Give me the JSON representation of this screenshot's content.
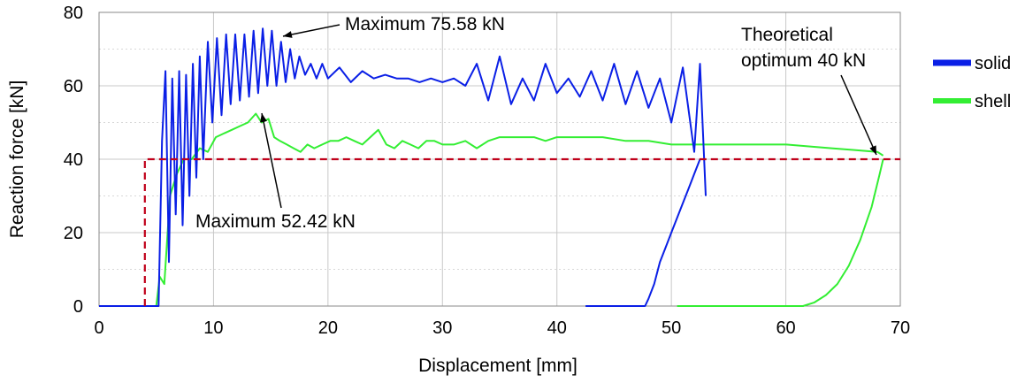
{
  "chart_data": {
    "type": "line",
    "xlabel": "Displacement [mm]",
    "ylabel": "Reaction force [kN]",
    "xlim": [
      0,
      70
    ],
    "ylim": [
      0,
      80
    ],
    "x_ticks": [
      0,
      10,
      20,
      30,
      40,
      50,
      60,
      70
    ],
    "y_ticks": [
      0,
      20,
      40,
      60,
      80
    ],
    "grid": true,
    "legend_position": "right",
    "series": [
      {
        "name": "solid",
        "color": "#0a1fe6",
        "segments": [
          {
            "x": [
              0,
              5.2,
              5.5,
              5.8,
              6.1,
              6.4,
              6.7,
              7.0,
              7.3,
              7.6,
              7.9,
              8.2,
              8.5,
              8.8,
              9.1,
              9.5,
              9.9,
              10.3,
              10.7,
              11.1,
              11.5,
              11.9,
              12.3,
              12.7,
              13.1,
              13.5,
              13.9,
              14.3,
              14.7,
              15.1,
              15.5,
              15.9,
              16.3,
              16.7,
              17.1,
              17.5,
              18,
              18.5,
              19,
              19.5,
              20,
              21,
              22,
              23,
              24,
              25,
              26,
              27,
              28,
              29,
              30,
              31,
              32,
              33,
              34,
              35,
              36,
              37,
              38,
              39,
              40,
              41,
              42,
              43,
              44,
              45,
              46,
              47,
              48,
              49,
              50,
              51,
              52,
              52.5,
              53
            ],
            "y": [
              0,
              0,
              45,
              64,
              12,
              62,
              25,
              64,
              22,
              63,
              30,
              66,
              35,
              68,
              40,
              72,
              50,
              73,
              52,
              74,
              55,
              74,
              56,
              74,
              57,
              75,
              58,
              75.6,
              60,
              75,
              60,
              72,
              61,
              70,
              62,
              68,
              63,
              66,
              62,
              66,
              62,
              65,
              61,
              64,
              62,
              63,
              62,
              62,
              61,
              62,
              61,
              62,
              60,
              66,
              56,
              68,
              55,
              62,
              56,
              66,
              58,
              62,
              57,
              64,
              56,
              66,
              55,
              64,
              54,
              62,
              50,
              65,
              42,
              66,
              30
            ]
          },
          {
            "x": [
              42.5,
              47.7,
              48.0,
              48.5,
              49.0,
              49.5,
              50.0,
              50.5,
              51.0,
              51.5,
              52.0,
              52.5
            ],
            "y": [
              0,
              0,
              2,
              6,
              12,
              16,
              20,
              24,
              28,
              32,
              36,
              40
            ]
          }
        ]
      },
      {
        "name": "shell",
        "color": "#33ee33",
        "segments": [
          {
            "x": [
              0,
              5,
              5.3,
              5.7,
              6.2,
              6.8,
              7.4,
              8.1,
              8.8,
              9.5,
              10.2,
              10.9,
              11.6,
              12.3,
              13,
              13.7,
              14.2,
              14.8,
              15.3,
              15.8,
              16.4,
              17.0,
              17.6,
              18.2,
              18.8,
              19.5,
              20.2,
              20.9,
              21.6,
              22.3,
              23.0,
              23.7,
              24.4,
              25.1,
              25.8,
              26.5,
              27.2,
              27.9,
              28.6,
              29.3,
              30.0,
              31.0,
              32.0,
              33.0,
              34.0,
              35.0,
              36.0,
              37.0,
              38.0,
              39.0,
              40.0,
              42.0,
              44.0,
              46.0,
              48.0,
              50.0,
              52.0,
              54.0,
              56.0,
              58.0,
              60.0,
              62.0,
              64.0,
              66.0,
              68.0,
              68.5
            ],
            "y": [
              0,
              0,
              8,
              6,
              30,
              36,
              40,
              40,
              43,
              42,
              46,
              47,
              48,
              49,
              50,
              52.42,
              50,
              51,
              46,
              45,
              44,
              43,
              42,
              44,
              43,
              44,
              45,
              45,
              46,
              45,
              44,
              46,
              48,
              44,
              43,
              45,
              44,
              43,
              45,
              45,
              44,
              44,
              45,
              43,
              45,
              46,
              46,
              46,
              46,
              45,
              46,
              46,
              46,
              45,
              45,
              44,
              44,
              44,
              44,
              44,
              44,
              43.5,
              43,
              42.5,
              42,
              41
            ]
          },
          {
            "x": [
              50.5,
              61.5,
              62.5,
              63.5,
              64.5,
              65.5,
              66.5,
              67.5,
              68.2,
              68.5
            ],
            "y": [
              0,
              0,
              1,
              3,
              6,
              11,
              18,
              27,
              36,
              40
            ]
          }
        ]
      },
      {
        "name": "",
        "color": "#c0001a",
        "dashed": true,
        "x": [
          4,
          4,
          70
        ],
        "y": [
          0,
          40,
          40
        ]
      }
    ],
    "annotations": [
      {
        "text": "Maximum 75.58 kN",
        "x": 15.8,
        "y": 75.6
      },
      {
        "text": "Maximum 52.42 kN",
        "x": 14.2,
        "y": 52.42
      },
      {
        "text_line1": "Theoretical",
        "text_line2": "optimum 40 kN",
        "x": 68.3,
        "y": 40.5
      }
    ]
  }
}
